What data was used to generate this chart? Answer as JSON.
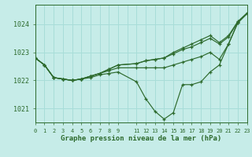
{
  "title": "Graphe pression niveau de la mer (hPa)",
  "background_color": "#c6ece8",
  "grid_color": "#a8ddd8",
  "line_color": "#2d6a2d",
  "text_color": "#2d6a2d",
  "xlim": [
    0,
    23
  ],
  "ylim": [
    1020.5,
    1024.7
  ],
  "yticks": [
    1021,
    1022,
    1023,
    1024
  ],
  "ytick_labels": [
    "1021",
    "1022",
    "1023",
    "1024"
  ],
  "xtick_positions": [
    0,
    1,
    2,
    3,
    4,
    5,
    6,
    7,
    8,
    9,
    11,
    12,
    13,
    14,
    15,
    16,
    17,
    18,
    19,
    20,
    21,
    22,
    23
  ],
  "xtick_labels": [
    "0",
    "1",
    "2",
    "3",
    "4",
    "5",
    "6",
    "7",
    "8",
    "9",
    "11",
    "12",
    "13",
    "14",
    "15",
    "16",
    "17",
    "18",
    "19",
    "20",
    "21",
    "22",
    "23"
  ],
  "lines": [
    {
      "x": [
        0,
        1,
        2,
        3,
        4,
        5,
        6,
        7,
        8,
        9,
        11,
        12,
        13,
        14,
        15,
        16,
        17,
        18,
        19,
        20,
        21,
        22,
        23
      ],
      "y": [
        1022.8,
        1022.55,
        1022.1,
        1022.05,
        1022.0,
        1022.05,
        1022.1,
        1022.2,
        1022.25,
        1022.3,
        1021.95,
        1021.35,
        1020.9,
        1020.62,
        1020.85,
        1021.85,
        1021.85,
        1021.95,
        1022.3,
        1022.55,
        1023.3,
        1024.05,
        1024.38
      ]
    },
    {
      "x": [
        0,
        1,
        2,
        3,
        4,
        5,
        6,
        7,
        8,
        9,
        11,
        12,
        13,
        14,
        15,
        16,
        17,
        18,
        19,
        20,
        21,
        22,
        23
      ],
      "y": [
        1022.8,
        1022.55,
        1022.1,
        1022.05,
        1022.0,
        1022.05,
        1022.15,
        1022.25,
        1022.35,
        1022.45,
        1022.45,
        1022.45,
        1022.45,
        1022.45,
        1022.55,
        1022.65,
        1022.75,
        1022.85,
        1023.0,
        1022.75,
        1023.3,
        1024.06,
        1024.38
      ]
    },
    {
      "x": [
        0,
        1,
        2,
        3,
        4,
        5,
        6,
        7,
        8,
        9,
        11,
        12,
        13,
        14,
        15,
        16,
        17,
        18,
        19,
        20,
        21,
        22,
        23
      ],
      "y": [
        1022.8,
        1022.55,
        1022.1,
        1022.05,
        1022.0,
        1022.05,
        1022.15,
        1022.25,
        1022.4,
        1022.55,
        1022.6,
        1022.7,
        1022.75,
        1022.8,
        1022.95,
        1023.1,
        1023.2,
        1023.35,
        1023.5,
        1023.3,
        1023.55,
        1024.08,
        1024.4
      ]
    },
    {
      "x": [
        0,
        1,
        2,
        3,
        4,
        5,
        6,
        7,
        8,
        9,
        11,
        12,
        13,
        14,
        15,
        16,
        17,
        18,
        19,
        20,
        21,
        22,
        23
      ],
      "y": [
        1022.8,
        1022.55,
        1022.1,
        1022.05,
        1022.0,
        1022.05,
        1022.15,
        1022.25,
        1022.4,
        1022.55,
        1022.6,
        1022.7,
        1022.75,
        1022.8,
        1023.0,
        1023.15,
        1023.3,
        1023.45,
        1023.6,
        1023.35,
        1023.6,
        1024.1,
        1024.4
      ]
    }
  ]
}
